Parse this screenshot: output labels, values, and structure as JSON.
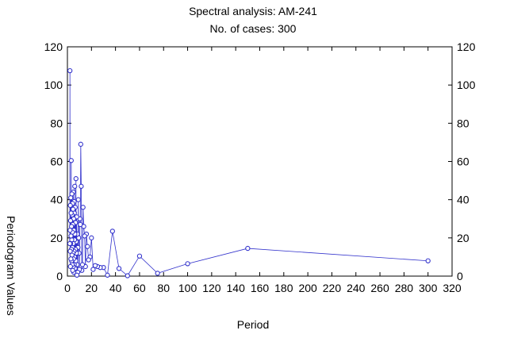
{
  "chart_data": {
    "type": "line",
    "title": "Spectral analysis: AM-241",
    "subtitle": "No. of cases: 300",
    "xlabel": "Period",
    "ylabel": "Periodogram Values",
    "xlim": [
      0,
      320
    ],
    "ylim": [
      0,
      120
    ],
    "xticks": [
      0,
      20,
      40,
      60,
      80,
      100,
      120,
      140,
      160,
      180,
      200,
      220,
      240,
      260,
      280,
      300,
      320
    ],
    "yticks": [
      0,
      20,
      40,
      60,
      80,
      100,
      120
    ],
    "grid": false,
    "line_color": "#3333cc",
    "points": [
      [
        300,
        8
      ],
      [
        150,
        14.5
      ],
      [
        100,
        6.5
      ],
      [
        75,
        1.5
      ],
      [
        60,
        10.5
      ],
      [
        50,
        0.2
      ],
      [
        42.9,
        4
      ],
      [
        37.5,
        23.5
      ],
      [
        33.3,
        0.5
      ],
      [
        30,
        4.5
      ],
      [
        27.3,
        4.5
      ],
      [
        25,
        5
      ],
      [
        23.1,
        5.5
      ],
      [
        21.4,
        3.5
      ],
      [
        20,
        20
      ],
      [
        18.8,
        10
      ],
      [
        17.6,
        8.5
      ],
      [
        16.7,
        15.5
      ],
      [
        15.8,
        22
      ],
      [
        15,
        5
      ],
      [
        14.3,
        21
      ],
      [
        13.6,
        26
      ],
      [
        13,
        36
      ],
      [
        12.5,
        6
      ],
      [
        12,
        3
      ],
      [
        11.5,
        47
      ],
      [
        11.1,
        69
      ],
      [
        10.7,
        27
      ],
      [
        10.3,
        30
      ],
      [
        10,
        3.5
      ],
      [
        9.7,
        12
      ],
      [
        9.4,
        20
      ],
      [
        9.1,
        40
      ],
      [
        8.8,
        15
      ],
      [
        8.6,
        2
      ],
      [
        8.3,
        22
      ],
      [
        8.1,
        6
      ],
      [
        7.9,
        0.5
      ],
      [
        7.7,
        31
      ],
      [
        7.5,
        12
      ],
      [
        7.3,
        18
      ],
      [
        7.1,
        51
      ],
      [
        7,
        8
      ],
      [
        6.8,
        28
      ],
      [
        6.7,
        14
      ],
      [
        6.5,
        36
      ],
      [
        6.4,
        4
      ],
      [
        6.2,
        22
      ],
      [
        6.1,
        47
      ],
      [
        6,
        10
      ],
      [
        5.9,
        19
      ],
      [
        5.8,
        33
      ],
      [
        5.7,
        6
      ],
      [
        5.6,
        39
      ],
      [
        5.5,
        13
      ],
      [
        5.4,
        24
      ],
      [
        5.3,
        2
      ],
      [
        5.2,
        30
      ],
      [
        5.1,
        9
      ],
      [
        5,
        44
      ],
      [
        4.9,
        17
      ],
      [
        4.8,
        5
      ],
      [
        4.7,
        35
      ],
      [
        4.6,
        12
      ],
      [
        4.5,
        27
      ],
      [
        4.4,
        3
      ],
      [
        4.3,
        38
      ],
      [
        4.2,
        15
      ],
      [
        4.1,
        23
      ],
      [
        4,
        6
      ],
      [
        3.9,
        32
      ],
      [
        3.8,
        11
      ],
      [
        3.7,
        43
      ],
      [
        3.6,
        19
      ],
      [
        3.5,
        8
      ],
      [
        3.4,
        26
      ],
      [
        3.3,
        14
      ],
      [
        3.2,
        60.5
      ],
      [
        3.1,
        33
      ],
      [
        3,
        21
      ],
      [
        2.9,
        9
      ],
      [
        2.8,
        41
      ],
      [
        2.7,
        17
      ],
      [
        2.6,
        29
      ],
      [
        2.5,
        5
      ],
      [
        2.4,
        37
      ],
      [
        2.3,
        13
      ],
      [
        2.2,
        24
      ],
      [
        2.1,
        107.5
      ],
      [
        2,
        17
      ]
    ]
  }
}
